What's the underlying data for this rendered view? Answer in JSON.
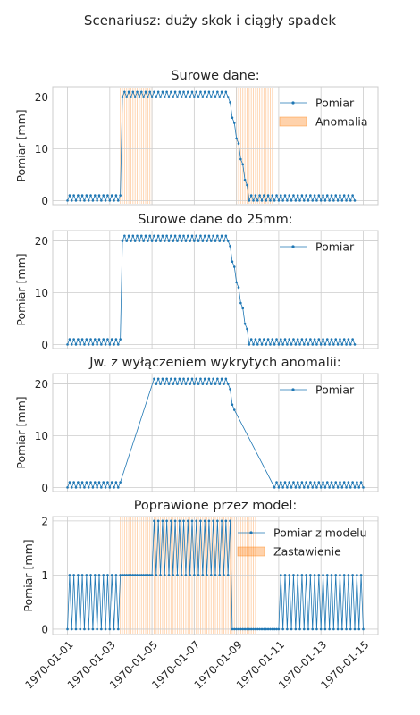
{
  "figure": {
    "suptitle": "Scenariusz: duży skok i ciągły spadek"
  },
  "colors": {
    "series": "#1f77b4",
    "band": "#ff7f0e",
    "grid": "#cccccc",
    "frame": "#cccccc",
    "text": "#262626"
  },
  "shared_x": {
    "tick_labels": [
      "1970-01-01",
      "1970-01-03",
      "1970-01-05",
      "1970-01-07",
      "1970-01-09",
      "1970-01-11",
      "1970-01-13",
      "1970-01-15"
    ],
    "tick_values": [
      0,
      2,
      4,
      6,
      8,
      10,
      12,
      14
    ],
    "xlim": [
      -0.7,
      14.7
    ],
    "step_days": 0.1
  },
  "chart_data": [
    {
      "type": "line",
      "title": "Surowe dane:",
      "ylabel": "Pomiar [mm]",
      "ylim": [
        -0.8,
        22
      ],
      "yticks": [
        0,
        10,
        20
      ],
      "legend": [
        "Pomiar",
        "Anomalia"
      ],
      "legend_placement": "top-right",
      "series": [
        {
          "name": "Pomiar",
          "x_start": 0,
          "x_step": 0.1,
          "values": [
            0,
            1,
            0,
            1,
            0,
            1,
            0,
            1,
            0,
            1,
            0,
            1,
            0,
            1,
            0,
            1,
            0,
            1,
            0,
            1,
            0,
            1,
            0,
            1,
            0,
            1,
            20,
            21,
            20,
            21,
            20,
            21,
            20,
            21,
            20,
            21,
            20,
            21,
            20,
            21,
            20,
            21,
            20,
            21,
            20,
            21,
            20,
            21,
            20,
            21,
            20,
            21,
            20,
            21,
            20,
            21,
            20,
            21,
            20,
            21,
            20,
            21,
            20,
            21,
            20,
            21,
            20,
            21,
            20,
            21,
            20,
            21,
            20,
            21,
            20,
            21,
            20,
            19,
            16,
            15,
            12,
            11,
            8,
            7,
            4,
            3,
            0,
            1,
            0,
            1,
            0,
            1,
            0,
            1,
            0,
            1,
            0,
            1,
            0,
            1,
            0,
            1,
            0,
            1,
            0,
            1,
            0,
            1,
            0,
            1,
            0,
            1,
            0,
            1,
            0,
            1,
            0,
            1,
            0,
            1,
            0,
            1,
            0,
            1,
            0,
            1,
            0,
            1,
            0,
            1,
            0,
            1,
            0,
            1,
            0,
            1,
            0
          ]
        }
      ],
      "anomaly_intervals": [
        [
          2.5,
          4.0
        ],
        [
          8.0,
          9.7
        ]
      ]
    },
    {
      "type": "line",
      "title": "Surowe dane do 25mm:",
      "ylabel": "Pomiar [mm]",
      "ylim": [
        -0.8,
        22
      ],
      "yticks": [
        0,
        10,
        20
      ],
      "legend": [
        "Pomiar"
      ],
      "legend_placement": "top-right",
      "series": [
        {
          "name": "Pomiar",
          "x_start": 0,
          "x_step": 0.1,
          "values": [
            0,
            1,
            0,
            1,
            0,
            1,
            0,
            1,
            0,
            1,
            0,
            1,
            0,
            1,
            0,
            1,
            0,
            1,
            0,
            1,
            0,
            1,
            0,
            1,
            0,
            1,
            20,
            21,
            20,
            21,
            20,
            21,
            20,
            21,
            20,
            21,
            20,
            21,
            20,
            21,
            20,
            21,
            20,
            21,
            20,
            21,
            20,
            21,
            20,
            21,
            20,
            21,
            20,
            21,
            20,
            21,
            20,
            21,
            20,
            21,
            20,
            21,
            20,
            21,
            20,
            21,
            20,
            21,
            20,
            21,
            20,
            21,
            20,
            21,
            20,
            21,
            20,
            19,
            16,
            15,
            12,
            11,
            8,
            7,
            4,
            3,
            0,
            1,
            0,
            1,
            0,
            1,
            0,
            1,
            0,
            1,
            0,
            1,
            0,
            1,
            0,
            1,
            0,
            1,
            0,
            1,
            0,
            1,
            0,
            1,
            0,
            1,
            0,
            1,
            0,
            1,
            0,
            1,
            0,
            1,
            0,
            1,
            0,
            1,
            0,
            1,
            0,
            1,
            0,
            1,
            0,
            1,
            0,
            1,
            0,
            1,
            0
          ]
        }
      ]
    },
    {
      "type": "line",
      "title": "Jw. z wyłączeniem wykrytych anomalii:",
      "ylabel": "Pomiar [mm]",
      "ylim": [
        -0.8,
        22
      ],
      "yticks": [
        0,
        10,
        20
      ],
      "legend": [
        "Pomiar"
      ],
      "legend_placement": "top-right",
      "series": [
        {
          "name": "Pomiar",
          "x_start": 0,
          "x_step": 0.1,
          "values": [
            0,
            1,
            0,
            1,
            0,
            1,
            0,
            1,
            0,
            1,
            0,
            1,
            0,
            1,
            0,
            1,
            0,
            1,
            0,
            1,
            0,
            1,
            0,
            1,
            0,
            1,
            null,
            null,
            null,
            null,
            null,
            null,
            null,
            null,
            null,
            null,
            null,
            null,
            null,
            null,
            null,
            21,
            20,
            21,
            20,
            21,
            20,
            21,
            20,
            21,
            20,
            21,
            20,
            21,
            20,
            21,
            20,
            21,
            20,
            21,
            20,
            21,
            20,
            21,
            20,
            21,
            20,
            21,
            20,
            21,
            20,
            21,
            20,
            21,
            20,
            21,
            20,
            19,
            16,
            15,
            null,
            null,
            null,
            null,
            null,
            null,
            null,
            null,
            null,
            null,
            null,
            null,
            null,
            null,
            null,
            null,
            null,
            null,
            0,
            1,
            0,
            1,
            0,
            1,
            0,
            1,
            0,
            1,
            0,
            1,
            0,
            1,
            0,
            1,
            0,
            1,
            0,
            1,
            0,
            1,
            0,
            1,
            0,
            1,
            0,
            1,
            0,
            1,
            0,
            1,
            0,
            1,
            0,
            1,
            0,
            1,
            0,
            1,
            0,
            1,
            0
          ]
        }
      ]
    },
    {
      "type": "line",
      "title": "Poprawione przez model:",
      "ylabel": "Pomiar [mm]",
      "ylim": [
        -0.1,
        2.08
      ],
      "yticks": [
        0,
        1,
        2
      ],
      "legend": [
        "Pomiar z modelu",
        "Zastawienie"
      ],
      "legend_placement": "top-right",
      "series": [
        {
          "name": "Pomiar z modelu",
          "x_start": 0,
          "x_step": 0.1,
          "values": [
            0,
            1,
            0,
            1,
            0,
            1,
            0,
            1,
            0,
            1,
            0,
            1,
            0,
            1,
            0,
            1,
            0,
            1,
            0,
            1,
            0,
            1,
            0,
            1,
            0,
            1,
            1,
            1,
            1,
            1,
            1,
            1,
            1,
            1,
            1,
            1,
            1,
            1,
            1,
            1,
            1,
            2,
            1,
            2,
            1,
            2,
            1,
            2,
            1,
            2,
            1,
            2,
            1,
            2,
            1,
            2,
            1,
            2,
            1,
            2,
            1,
            2,
            1,
            2,
            1,
            2,
            1,
            2,
            1,
            2,
            1,
            2,
            1,
            2,
            1,
            2,
            1,
            2,
            0,
            0,
            0,
            0,
            0,
            0,
            0,
            0,
            0,
            0,
            0,
            0,
            0,
            0,
            0,
            0,
            0,
            0,
            0,
            0,
            0,
            0,
            0,
            1,
            0,
            1,
            0,
            1,
            0,
            1,
            0,
            1,
            0,
            1,
            0,
            1,
            0,
            1,
            0,
            1,
            0,
            1,
            0,
            1,
            0,
            1,
            0,
            1,
            0,
            1,
            0,
            1,
            0,
            1,
            0,
            1,
            0,
            1,
            0,
            1,
            0,
            1,
            0
          ]
        }
      ],
      "anomaly_intervals": [
        [
          2.5,
          8.9
        ]
      ]
    }
  ]
}
